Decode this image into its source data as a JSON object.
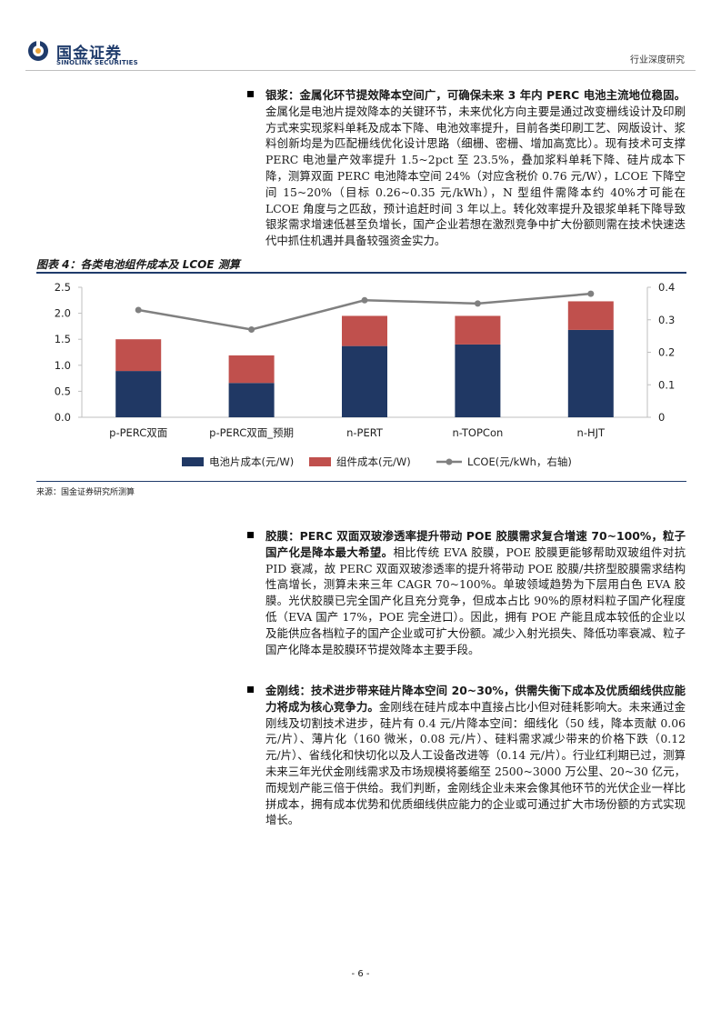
{
  "header": {
    "logo_cn": "国金证券",
    "logo_en": "SINOLINK SECURITIES",
    "report_type": "行业深度研究",
    "brand_color": "#1f3b6b"
  },
  "sections": [
    {
      "title": "银浆：金属化环节提效降本空间广，可确保未来 3 年内 PERC 电池主流地位稳固。",
      "body": "金属化是电池片提效降本的关键环节，未来优化方向主要是通过改变栅线设计及印刷方式来实现浆料单耗及成本下降、电池效率提升，目前各类印刷工艺、网版设计、浆料创新均是为匹配栅线优化设计思路（细栅、密栅、增加高宽比）。现有技术可支撑 PERC 电池量产效率提升 1.5~2pct 至 23.5%，叠加浆料单耗下降、硅片成本下降，测算双面 PERC 电池降本空间 24%（对应含税价 0.76 元/W），LCOE 下降空间 15~20%（目标 0.26~0.35 元/kWh），N 型组件需降本约 40%才可能在 LCOE 角度与之匹敌，预计追赶时间 3 年以上。转化效率提升及银浆单耗下降导致银浆需求增速低甚至负增长，国产企业若想在激烈竞争中扩大份额则需在技术快速迭代中抓住机遇并具备较强资金实力。"
    },
    {
      "title": "胶膜：PERC 双面双玻渗透率提升带动 POE 胶膜需求复合增速 70~100%，粒子国产化是降本最大希望。",
      "body": "相比传统 EVA 胶膜，POE 胶膜更能够帮助双玻组件对抗 PID 衰减，故 PERC 双面双玻渗透率的提升将带动 POE 胶膜/共挤型胶膜需求结构性高增长，测算未来三年 CAGR 70~100%。单玻领域趋势为下层用白色 EVA 胶膜。光伏胶膜已完全国产化且充分竞争，但成本占比 90%的原材料粒子国产化程度低（EVA 国产 17%，POE 完全进口）。因此，拥有 POE 产能且成本较低的企业以及能供应各档粒子的国产企业或可扩大份额。减少入射光损失、降低功率衰减、粒子国产化降本是胶膜环节提效降本主要手段。"
    },
    {
      "title": "金刚线：技术进步带来硅片降本空间 20~30%，供需失衡下成本及优质细线供应能力将成为核心竞争力。",
      "body": "金刚线在硅片成本中直接占比小但对硅耗影响大。未来通过金刚线及切割技术进步，硅片有 0.4 元/片降本空间：细线化（50 线，降本贡献 0.06 元/片）、薄片化（160 微米，0.08 元/片）、硅料需求减少带来的价格下跌（0.12 元/片）、省线化和快切化以及人工设备改进等（0.14 元/片）。行业红利期已过，测算未来三年光伏金刚线需求及市场规模将萎缩至 2500~3000 万公里、20~30 亿元，而规划产能三倍于供给。我们判断，金刚线企业未来会像其他环节的光伏企业一样比拼成本，拥有成本优势和优质细线供应能力的企业或可通过扩大市场份额的方式实现增长。"
    }
  ],
  "figure": {
    "title": "图表 4：各类电池组件成本及 LCOE 测算",
    "source": "来源：国金证券研究所测算"
  },
  "chart_data": {
    "type": "bar",
    "stacked": true,
    "categories": [
      "p-PERC双面",
      "p-PERC双面_预期",
      "n-PERT",
      "n-TOPCon",
      "n-HJT"
    ],
    "series": [
      {
        "name": "电池片成本(元/W)",
        "axis": "left",
        "color": "#203864",
        "values": [
          0.89,
          0.66,
          1.37,
          1.4,
          1.68
        ]
      },
      {
        "name": "组件成本(元/W)",
        "axis": "left",
        "color": "#c0504d",
        "values": [
          0.61,
          0.53,
          0.58,
          0.55,
          0.55
        ]
      },
      {
        "name": "LCOE(元/kWh，右轴)",
        "axis": "right",
        "type": "line",
        "color": "#808080",
        "values": [
          0.33,
          0.27,
          0.36,
          0.35,
          0.38
        ]
      }
    ],
    "y_left": {
      "min": 0,
      "max": 2.5,
      "ticks": [
        "0.0",
        "0.5",
        "1.0",
        "1.5",
        "2.0",
        "2.5"
      ]
    },
    "y_right": {
      "min": 0,
      "max": 0.4,
      "ticks": [
        "0",
        "0.1",
        "0.2",
        "0.3",
        "0.4"
      ]
    },
    "grid": false,
    "legend": "bottom"
  },
  "page_number": "- 6 -"
}
